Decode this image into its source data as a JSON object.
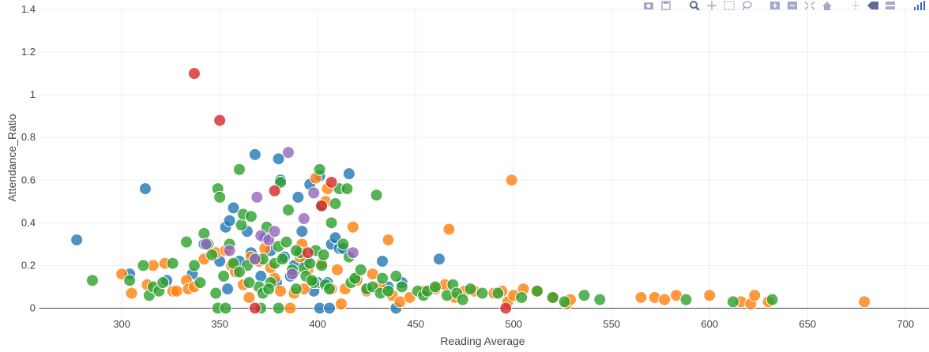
{
  "modebar": {
    "buttons": [
      {
        "name": "camera-icon",
        "title": "Download plot as a png"
      },
      {
        "name": "save-icon",
        "title": "Edit in Chart Studio"
      },
      {
        "name": "zoom-icon",
        "title": "Zoom"
      },
      {
        "name": "pan-icon",
        "title": "Pan"
      },
      {
        "name": "box-select-icon",
        "title": "Box Select"
      },
      {
        "name": "lasso-select-icon",
        "title": "Lasso Select"
      },
      {
        "name": "zoom-in-icon",
        "title": "Zoom in"
      },
      {
        "name": "zoom-out-icon",
        "title": "Zoom out"
      },
      {
        "name": "autoscale-icon",
        "title": "Autoscale"
      },
      {
        "name": "home-icon",
        "title": "Reset axes"
      },
      {
        "name": "spike-lines-icon",
        "title": "Toggle Spike Lines"
      },
      {
        "name": "hover-closest-icon",
        "title": "Show closest data on hover"
      },
      {
        "name": "hover-compare-icon",
        "title": "Compare data on hover"
      },
      {
        "name": "plotly-logo-icon",
        "title": "Produced with Plotly"
      }
    ],
    "icon_color": "#a3a9c6",
    "active_color": "#5f6b98"
  },
  "chart_data": {
    "type": "scatter",
    "xlabel": "Reading Average",
    "ylabel": "Attendance_Ratio",
    "xlim": [
      258,
      712
    ],
    "ylim": [
      -0.05,
      1.4
    ],
    "xticks": [
      300,
      350,
      400,
      450,
      500,
      550,
      600,
      650,
      700
    ],
    "yticks": [
      0,
      0.2,
      0.4,
      0.6,
      0.8,
      1,
      1.2,
      1.4
    ],
    "ytick_labels": [
      "0",
      "0.2",
      "0.4",
      "0.6",
      "0.8",
      "1",
      "1.2",
      "1.4"
    ],
    "grid": true,
    "zeroline": true,
    "legend": "none",
    "marker_opacity": 0.8,
    "series": [
      {
        "color": "#1f77b4",
        "points": [
          [
            277,
            0.32
          ],
          [
            304,
            0.16
          ],
          [
            312,
            0.56
          ],
          [
            323,
            0.13
          ],
          [
            336,
            0.16
          ],
          [
            342,
            0.3
          ],
          [
            350,
            0.22
          ],
          [
            353,
            0.38
          ],
          [
            355,
            0.41
          ],
          [
            357,
            0.47
          ],
          [
            354,
            0.09
          ],
          [
            360,
            0.22
          ],
          [
            364,
            0.36
          ],
          [
            368,
            0.72
          ],
          [
            371,
            0.15
          ],
          [
            373,
            0.33
          ],
          [
            376,
            0.27
          ],
          [
            380,
            0.7
          ],
          [
            381,
            0.6
          ],
          [
            383,
            0.24
          ],
          [
            386,
            0.15
          ],
          [
            388,
            0.2
          ],
          [
            390,
            0.52
          ],
          [
            392,
            0.36
          ],
          [
            394,
            0.22
          ],
          [
            396,
            0.58
          ],
          [
            398,
            0.08
          ],
          [
            400,
            0.12
          ],
          [
            401,
            0.62
          ],
          [
            402,
            0.48
          ],
          [
            405,
            0.12
          ],
          [
            407,
            0.3
          ],
          [
            409,
            0.33
          ],
          [
            411,
            0.28
          ],
          [
            413,
            0.28
          ],
          [
            416,
            0.63
          ],
          [
            420,
            0.14
          ],
          [
            425,
            0.09
          ],
          [
            433,
            0.22
          ],
          [
            436,
            0.1
          ],
          [
            440,
            0.0
          ],
          [
            443,
            0.12
          ],
          [
            462,
            0.23
          ],
          [
            401,
            0.0
          ],
          [
            406,
            0.0
          ],
          [
            388,
            0.17
          ],
          [
            366,
            0.26
          ],
          [
            379,
            0.12
          ]
        ]
      },
      {
        "color": "#ff7f0e",
        "points": [
          [
            300,
            0.16
          ],
          [
            305,
            0.07
          ],
          [
            313,
            0.11
          ],
          [
            316,
            0.2
          ],
          [
            322,
            0.21
          ],
          [
            326,
            0.08
          ],
          [
            328,
            0.08
          ],
          [
            333,
            0.13
          ],
          [
            334,
            0.09
          ],
          [
            337,
            0.1
          ],
          [
            342,
            0.23
          ],
          [
            348,
            0.26
          ],
          [
            353,
            0.27
          ],
          [
            356,
            0.2
          ],
          [
            358,
            0.17
          ],
          [
            362,
            0.11
          ],
          [
            366,
            0.24
          ],
          [
            370,
            0.22
          ],
          [
            373,
            0.28
          ],
          [
            376,
            0.19
          ],
          [
            381,
            0.08
          ],
          [
            386,
            0.0
          ],
          [
            388,
            0.07
          ],
          [
            391,
            0.24
          ],
          [
            393,
            0.09
          ],
          [
            395,
            0.18
          ],
          [
            399,
            0.61
          ],
          [
            402,
            0.21
          ],
          [
            405,
            0.56
          ],
          [
            407,
            0.09
          ],
          [
            410,
            0.18
          ],
          [
            412,
            0.02
          ],
          [
            414,
            0.09
          ],
          [
            418,
            0.38
          ],
          [
            420,
            0.13
          ],
          [
            425,
            0.08
          ],
          [
            428,
            0.16
          ],
          [
            432,
            0.1
          ],
          [
            436,
            0.32
          ],
          [
            438,
            0.06
          ],
          [
            442,
            0.03
          ],
          [
            447,
            0.05
          ],
          [
            454,
            0.08
          ],
          [
            460,
            0.09
          ],
          [
            465,
            0.11
          ],
          [
            467,
            0.37
          ],
          [
            470,
            0.05
          ],
          [
            475,
            0.08
          ],
          [
            480,
            0.08
          ],
          [
            490,
            0.07
          ],
          [
            494,
            0.08
          ],
          [
            497,
            0.03
          ],
          [
            499,
            0.6
          ],
          [
            500,
            0.06
          ],
          [
            505,
            0.09
          ],
          [
            512,
            0.08
          ],
          [
            520,
            0.05
          ],
          [
            527,
            0.02
          ],
          [
            529,
            0.04
          ],
          [
            565,
            0.05
          ],
          [
            572,
            0.05
          ],
          [
            577,
            0.04
          ],
          [
            583,
            0.06
          ],
          [
            600,
            0.06
          ],
          [
            616,
            0.03
          ],
          [
            621,
            0.02
          ],
          [
            623,
            0.06
          ],
          [
            630,
            0.03
          ],
          [
            679,
            0.03
          ],
          [
            404,
            0.5
          ],
          [
            392,
            0.3
          ],
          [
            378,
            0.14
          ],
          [
            365,
            0.05
          ]
        ]
      },
      {
        "color": "#2ca02c",
        "points": [
          [
            285,
            0.13
          ],
          [
            304,
            0.13
          ],
          [
            311,
            0.2
          ],
          [
            314,
            0.06
          ],
          [
            316,
            0.1
          ],
          [
            319,
            0.08
          ],
          [
            321,
            0.12
          ],
          [
            326,
            0.21
          ],
          [
            333,
            0.31
          ],
          [
            337,
            0.2
          ],
          [
            340,
            0.12
          ],
          [
            342,
            0.35
          ],
          [
            344,
            0.3
          ],
          [
            346,
            0.25
          ],
          [
            348,
            0.07
          ],
          [
            349,
            0.56
          ],
          [
            350,
            0.52
          ],
          [
            352,
            0.15
          ],
          [
            355,
            0.3
          ],
          [
            357,
            0.21
          ],
          [
            360,
            0.65
          ],
          [
            361,
            0.39
          ],
          [
            362,
            0.44
          ],
          [
            364,
            0.2
          ],
          [
            366,
            0.43
          ],
          [
            368,
            0.23
          ],
          [
            370,
            0.1
          ],
          [
            372,
            0.07
          ],
          [
            374,
            0.38
          ],
          [
            376,
            0.12
          ],
          [
            378,
            0.21
          ],
          [
            380,
            0.29
          ],
          [
            381,
            0.59
          ],
          [
            382,
            0.23
          ],
          [
            384,
            0.31
          ],
          [
            385,
            0.46
          ],
          [
            387,
            0.18
          ],
          [
            389,
            0.09
          ],
          [
            391,
            0.26
          ],
          [
            393,
            0.19
          ],
          [
            394,
            0.15
          ],
          [
            396,
            0.21
          ],
          [
            398,
            0.12
          ],
          [
            399,
            0.27
          ],
          [
            401,
            0.65
          ],
          [
            402,
            0.2
          ],
          [
            403,
            0.25
          ],
          [
            404,
            0.11
          ],
          [
            406,
            0.09
          ],
          [
            407,
            0.4
          ],
          [
            409,
            0.49
          ],
          [
            411,
            0.56
          ],
          [
            413,
            0.3
          ],
          [
            415,
            0.56
          ],
          [
            416,
            0.24
          ],
          [
            417,
            0.12
          ],
          [
            419,
            0.14
          ],
          [
            422,
            0.18
          ],
          [
            425,
            0.09
          ],
          [
            428,
            0.1
          ],
          [
            430,
            0.53
          ],
          [
            432,
            0.07
          ],
          [
            433,
            0.14
          ],
          [
            436,
            0.08
          ],
          [
            440,
            0.15
          ],
          [
            443,
            0.1
          ],
          [
            451,
            0.08
          ],
          [
            454,
            0.06
          ],
          [
            456,
            0.08
          ],
          [
            460,
            0.1
          ],
          [
            466,
            0.06
          ],
          [
            469,
            0.11
          ],
          [
            471,
            0.07
          ],
          [
            474,
            0.04
          ],
          [
            478,
            0.09
          ],
          [
            484,
            0.07
          ],
          [
            492,
            0.07
          ],
          [
            504,
            0.05
          ],
          [
            512,
            0.08
          ],
          [
            520,
            0.05
          ],
          [
            526,
            0.03
          ],
          [
            536,
            0.06
          ],
          [
            544,
            0.04
          ],
          [
            588,
            0.04
          ],
          [
            612,
            0.03
          ],
          [
            632,
            0.04
          ],
          [
            349,
            0.0
          ],
          [
            353,
            0.0
          ],
          [
            371,
            0.0
          ],
          [
            380,
            0.0
          ],
          [
            397,
            0.13
          ],
          [
            365,
            0.12
          ],
          [
            375,
            0.09
          ],
          [
            389,
            0.27
          ],
          [
            360,
            0.17
          ],
          [
            372,
            0.23
          ]
        ]
      },
      {
        "color": "#d62728",
        "points": [
          [
            337,
            1.1
          ],
          [
            350,
            0.88
          ],
          [
            368,
            0.0
          ],
          [
            378,
            0.55
          ],
          [
            395,
            0.26
          ],
          [
            402,
            0.48
          ],
          [
            407,
            0.59
          ],
          [
            496,
            0.0
          ]
        ]
      },
      {
        "color": "#9467bd",
        "points": [
          [
            343,
            0.3
          ],
          [
            355,
            0.27
          ],
          [
            368,
            0.23
          ],
          [
            369,
            0.52
          ],
          [
            371,
            0.34
          ],
          [
            375,
            0.32
          ],
          [
            378,
            0.36
          ],
          [
            385,
            0.73
          ],
          [
            387,
            0.16
          ],
          [
            393,
            0.42
          ],
          [
            398,
            0.54
          ],
          [
            418,
            0.26
          ]
        ]
      }
    ]
  }
}
